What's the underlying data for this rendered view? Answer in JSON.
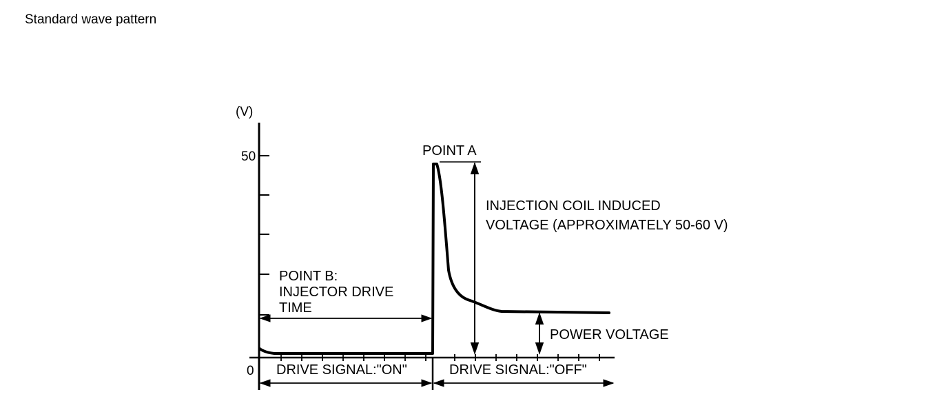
{
  "heading": "Standard wave pattern",
  "diagram": {
    "y_unit": "(V)",
    "y_tick_50": "50",
    "origin_label": "0",
    "point_a": "POINT A",
    "induced_line1": "INJECTION COIL INDUCED",
    "induced_line2": "VOLTAGE (APPROXIMATELY 50-60 V)",
    "point_b_line1": "POINT B:",
    "point_b_line2": "INJECTOR DRIVE",
    "point_b_line3": "TIME",
    "power_voltage": "POWER VOLTAGE",
    "drive_on": "DRIVE SIGNAL:\"ON\"",
    "drive_off": "DRIVE SIGNAL:\"OFF\""
  }
}
